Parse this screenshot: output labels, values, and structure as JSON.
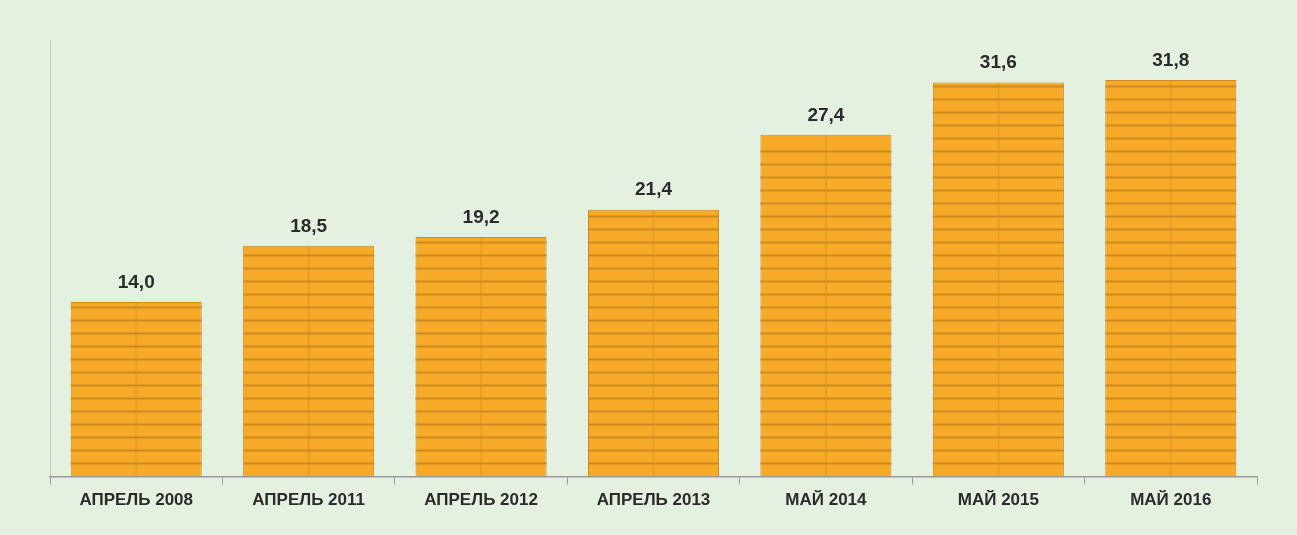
{
  "chart_data": {
    "type": "bar",
    "categories": [
      "АПРЕЛЬ 2008",
      "АПРЕЛЬ 2011",
      "АПРЕЛЬ 2012",
      "АПРЕЛЬ 2013",
      "МАЙ 2014",
      "МАЙ 2015",
      "МАЙ 2016"
    ],
    "values": [
      14.0,
      18.5,
      19.2,
      21.4,
      27.4,
      31.6,
      31.8
    ],
    "value_labels": [
      "14,0",
      "18,5",
      "19,2",
      "21,4",
      "27,4",
      "31,6",
      "31,8"
    ],
    "color": "#f7a928",
    "ylim": [
      0,
      35
    ],
    "grid": false,
    "data_labels": true,
    "tick_labels": "x"
  }
}
